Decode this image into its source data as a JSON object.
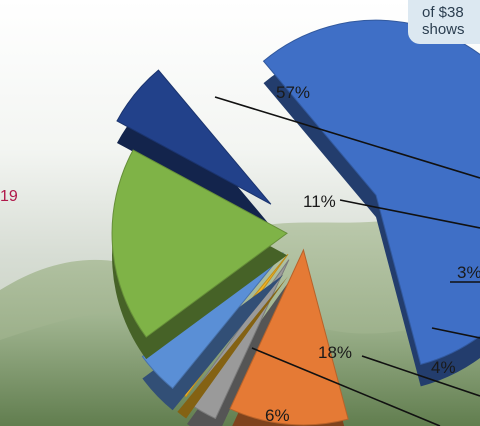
{
  "note": {
    "line1": "of $38",
    "line2": "shows"
  },
  "side_number": "19",
  "colors": {
    "accent": "#b0184a",
    "note_bg": "#dce8f1"
  },
  "chart_data": {
    "type": "pie",
    "title": "",
    "exploded": true,
    "three_d": true,
    "slices": [
      {
        "label": "57%",
        "value": 57,
        "color": "#3f6fc6"
      },
      {
        "label": "11%",
        "value": 11,
        "color": "#e57a35"
      },
      {
        "label": "3%",
        "value": 3,
        "color": "#9a9a9a"
      },
      {
        "label": "",
        "value": 1,
        "color": "#f0b323"
      },
      {
        "label": "4%",
        "value": 4,
        "color": "#5a8fd6"
      },
      {
        "label": "18%",
        "value": 18,
        "color": "#7fb347"
      },
      {
        "label": "6%",
        "value": 6,
        "color": "#22418a"
      }
    ]
  }
}
